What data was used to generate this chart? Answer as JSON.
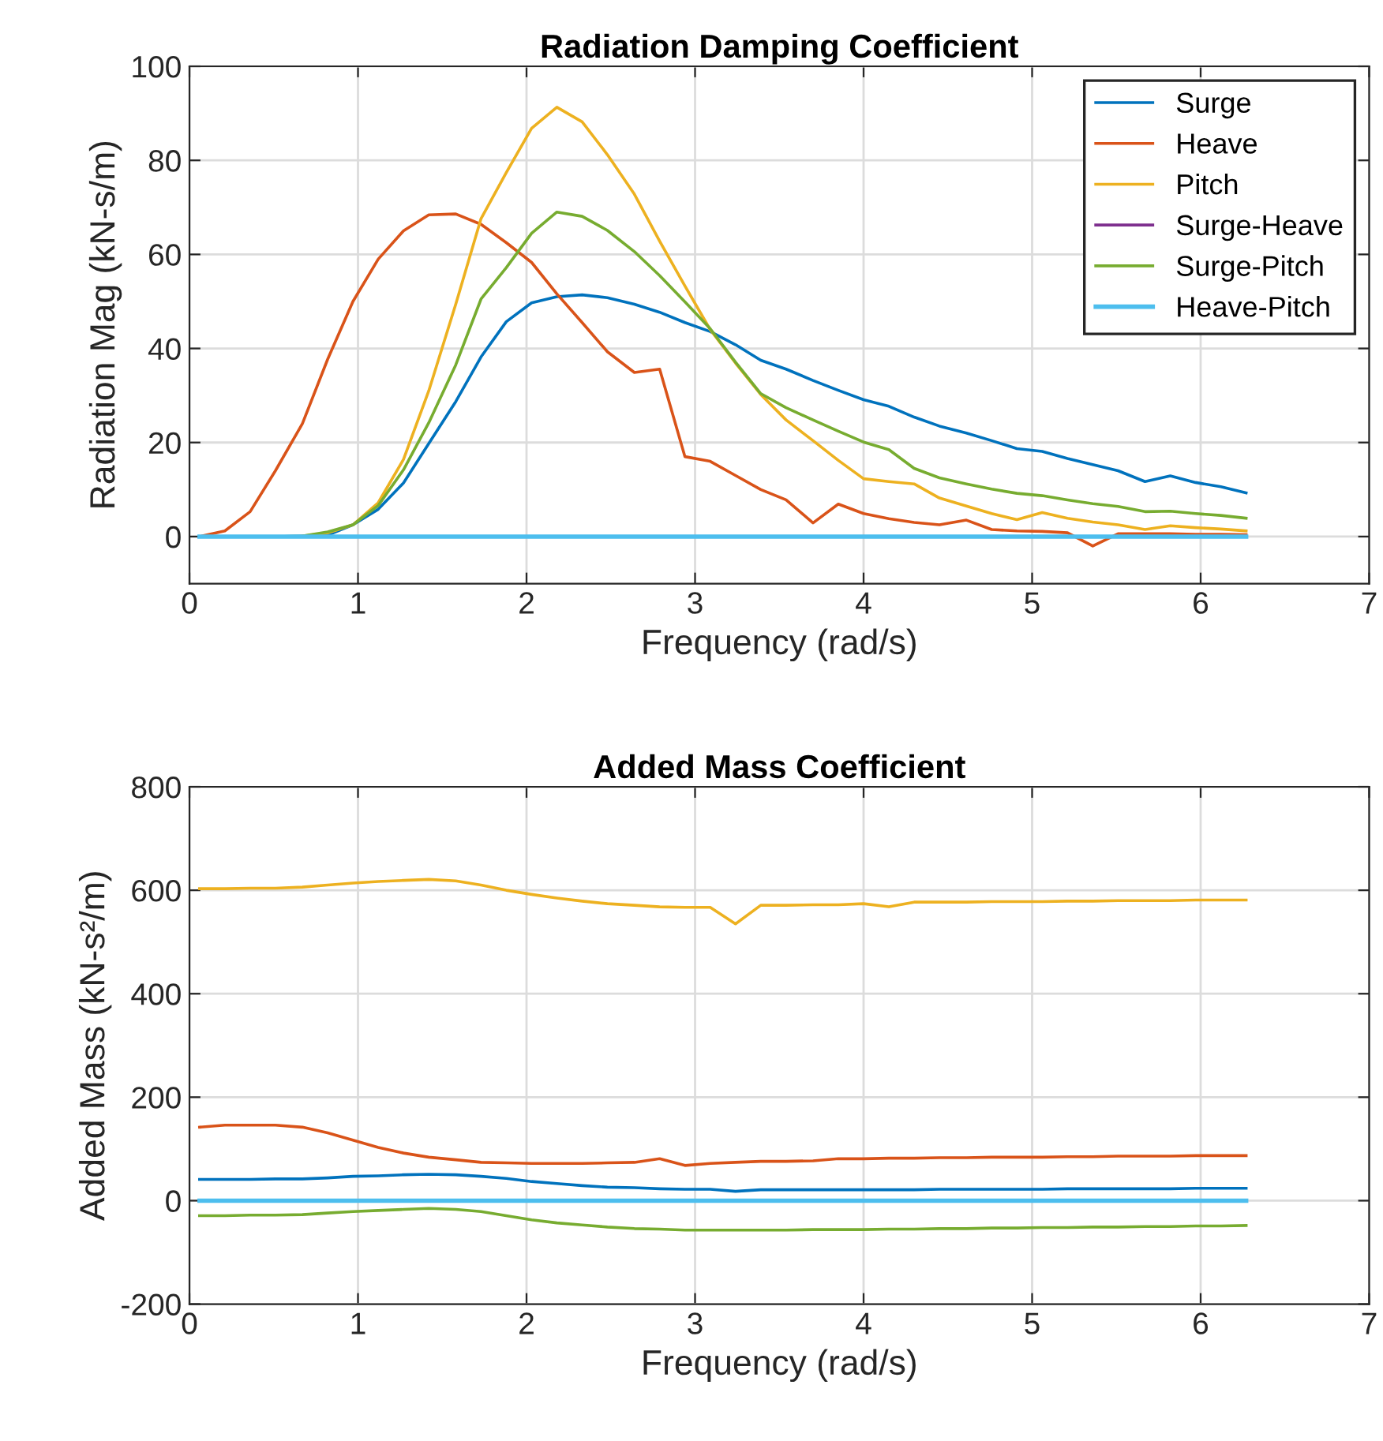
{
  "chart_data": [
    {
      "type": "line",
      "title": "Radiation Damping Coefficient",
      "xlabel": "Frequency (rad/s)",
      "ylabel": "Radiation Mag (kN-s/m)",
      "x": [
        0.06,
        0.21,
        0.36,
        0.51,
        0.67,
        0.82,
        0.97,
        1.12,
        1.27,
        1.42,
        1.58,
        1.73,
        1.88,
        2.03,
        2.18,
        2.33,
        2.48,
        2.64,
        2.79,
        2.94,
        3.09,
        3.24,
        3.39,
        3.54,
        3.7,
        3.85,
        4.0,
        4.15,
        4.3,
        4.45,
        4.61,
        4.76,
        4.91,
        5.06,
        5.21,
        5.36,
        5.51,
        5.67,
        5.82,
        5.97,
        6.12,
        6.27
      ],
      "series": [
        {
          "name": "Surge",
          "color": "#0072bd",
          "values": [
            0,
            0,
            0,
            0,
            0.1,
            0.3,
            2.5,
            5.8,
            11.4,
            19.8,
            28.7,
            38.2,
            45.7,
            49.7,
            51,
            51.4,
            50.8,
            49.4,
            47.7,
            45.5,
            43.6,
            40.8,
            37.5,
            35.6,
            33.2,
            31.1,
            29.1,
            27.7,
            25.4,
            23.5,
            22,
            20.4,
            18.7,
            18.1,
            16.6,
            15.3,
            14,
            11.7,
            12.9,
            11.5,
            10.6,
            9.3
          ]
        },
        {
          "name": "Heave",
          "color": "#d95319",
          "values": [
            0,
            1.2,
            5.3,
            14,
            24,
            37.7,
            50,
            59,
            65,
            68.4,
            68.6,
            66.4,
            62.5,
            58.3,
            51.6,
            45.5,
            39.3,
            34.9,
            35.6,
            17,
            16,
            13,
            10,
            7.8,
            2.9,
            6.9,
            4.9,
            3.8,
            3,
            2.5,
            3.5,
            1.5,
            1.2,
            1.1,
            0.8,
            -2,
            0.6,
            0.6,
            0.6,
            0.5,
            0.5,
            0.4
          ]
        },
        {
          "name": "Pitch",
          "color": "#edb120",
          "values": [
            null,
            null,
            null,
            null,
            0.1,
            0.8,
            2.5,
            7.2,
            16.4,
            31,
            49.4,
            67.6,
            77.4,
            86.8,
            91.3,
            88.2,
            81.2,
            72.8,
            62.8,
            53.3,
            44,
            36.9,
            30.2,
            24.8,
            20.4,
            16.2,
            12.3,
            11.7,
            11.2,
            8.2,
            6.5,
            4.9,
            3.6,
            5.1,
            3.9,
            3.1,
            2.5,
            1.5,
            2.3,
            1.9,
            1.6,
            1.2
          ]
        },
        {
          "name": "Surge-Heave",
          "color": "#7e2f8e",
          "values": [
            null,
            null,
            null,
            null,
            null,
            null,
            null,
            null,
            null,
            null,
            null,
            null,
            null,
            null,
            null,
            null,
            null,
            null,
            null,
            null,
            null,
            null,
            null,
            null,
            null,
            null,
            null,
            null,
            null,
            null,
            null,
            null,
            null,
            null,
            null,
            null,
            null,
            null,
            null,
            null,
            null,
            null
          ]
        },
        {
          "name": "Surge-Pitch",
          "color": "#77ac30",
          "values": [
            null,
            null,
            null,
            0,
            0.1,
            1,
            2.5,
            6.6,
            14.2,
            24.2,
            36.5,
            50.5,
            57.2,
            64.5,
            69,
            68.1,
            65.1,
            60.6,
            55.5,
            49.9,
            44.2,
            37.1,
            30.4,
            27.4,
            24.8,
            22.4,
            20.1,
            18.5,
            14.5,
            12.5,
            11.2,
            10.1,
            9.2,
            8.7,
            7.8,
            7,
            6.4,
            5.3,
            5.4,
            4.9,
            4.5,
            3.9
          ]
        },
        {
          "name": "Heave-Pitch",
          "color": "#4dbeee",
          "values": [
            0,
            0,
            0,
            0,
            0,
            0,
            0,
            0,
            0,
            0,
            0,
            0,
            0,
            0,
            0,
            0,
            0,
            0,
            0,
            0,
            0,
            0,
            0,
            0,
            0,
            0,
            0,
            0,
            0,
            0,
            0,
            0,
            0,
            0,
            0,
            0,
            0,
            0,
            0,
            0,
            0,
            0
          ]
        }
      ],
      "xlim": [
        0,
        7
      ],
      "xticks": [
        0,
        1,
        2,
        3,
        4,
        5,
        6,
        7
      ],
      "ylim": [
        -10,
        100
      ],
      "yticks": [
        0,
        20,
        40,
        60,
        80,
        100
      ],
      "grid": true,
      "legend": "top right"
    },
    {
      "type": "line",
      "title": "Added Mass Coefficient",
      "xlabel": "Frequency (rad/s)",
      "ylabel": "Added Mass (kN-s²/m)",
      "x": [
        0.06,
        0.21,
        0.36,
        0.51,
        0.67,
        0.82,
        0.97,
        1.12,
        1.27,
        1.42,
        1.58,
        1.73,
        1.88,
        2.03,
        2.18,
        2.33,
        2.48,
        2.64,
        2.79,
        2.94,
        3.09,
        3.24,
        3.39,
        3.54,
        3.7,
        3.85,
        4.0,
        4.15,
        4.3,
        4.45,
        4.61,
        4.76,
        4.91,
        5.06,
        5.21,
        5.36,
        5.51,
        5.67,
        5.82,
        5.97,
        6.12,
        6.27
      ],
      "series": [
        {
          "color": "#0072bd",
          "values": [
            41,
            41,
            41,
            42,
            42,
            44,
            47,
            48,
            50,
            51,
            50,
            47,
            43,
            37,
            33,
            29,
            26,
            25,
            23,
            22,
            22,
            18,
            21,
            21,
            21,
            21,
            21,
            21,
            21,
            22,
            22,
            22,
            22,
            22,
            23,
            23,
            23,
            23,
            23,
            24,
            24,
            24
          ]
        },
        {
          "color": "#d95319",
          "values": [
            142,
            146,
            146,
            146,
            142,
            131,
            117,
            103,
            92,
            84,
            79,
            74,
            73,
            72,
            72,
            72,
            73,
            74,
            81,
            68,
            72,
            74,
            76,
            76,
            77,
            81,
            81,
            82,
            82,
            83,
            83,
            84,
            84,
            84,
            85,
            85,
            86,
            86,
            86,
            87,
            87,
            87
          ]
        },
        {
          "color": "#edb120",
          "values": [
            603,
            603,
            604,
            604,
            606,
            610,
            614,
            617,
            619,
            621,
            618,
            610,
            600,
            592,
            585,
            579,
            574,
            571,
            568,
            567,
            567,
            535,
            571,
            571,
            572,
            572,
            574,
            568,
            577,
            577,
            577,
            578,
            578,
            578,
            579,
            579,
            580,
            580,
            580,
            581,
            581,
            581
          ]
        },
        {
          "color": "#7e2f8e",
          "values": [
            null,
            null,
            null,
            null,
            null,
            null,
            null,
            null,
            null,
            null,
            null,
            null,
            null,
            null,
            null,
            null,
            null,
            null,
            null,
            null,
            null,
            null,
            null,
            null,
            null,
            null,
            null,
            null,
            null,
            null,
            null,
            null,
            null,
            null,
            null,
            null,
            null,
            null,
            null,
            null,
            null,
            null
          ]
        },
        {
          "color": "#77ac30",
          "values": [
            -29,
            -29,
            -28,
            -28,
            -27,
            -24,
            -21,
            -19,
            -17,
            -15,
            -17,
            -21,
            -29,
            -37,
            -43,
            -47,
            -51,
            -54,
            -55,
            -57,
            -57,
            -57,
            -57,
            -57,
            -56,
            -56,
            -56,
            -55,
            -55,
            -54,
            -54,
            -53,
            -53,
            -52,
            -52,
            -51,
            -51,
            -50,
            -50,
            -49,
            -49,
            -48
          ]
        },
        {
          "color": "#4dbeee",
          "values": [
            0,
            0,
            0,
            0,
            0,
            0,
            0,
            0,
            0,
            0,
            0,
            0,
            0,
            0,
            0,
            0,
            0,
            0,
            0,
            0,
            0,
            0,
            0,
            0,
            0,
            0,
            0,
            0,
            0,
            0,
            0,
            0,
            0,
            0,
            0,
            0,
            0,
            0,
            0,
            0,
            0,
            0
          ]
        }
      ],
      "xlim": [
        0,
        7
      ],
      "xticks": [
        0,
        1,
        2,
        3,
        4,
        5,
        6,
        7
      ],
      "ylim": [
        -200,
        800
      ],
      "yticks": [
        {
          "value": -200,
          "label": "-200"
        },
        0,
        200,
        400,
        600,
        800
      ],
      "grid": true
    }
  ]
}
